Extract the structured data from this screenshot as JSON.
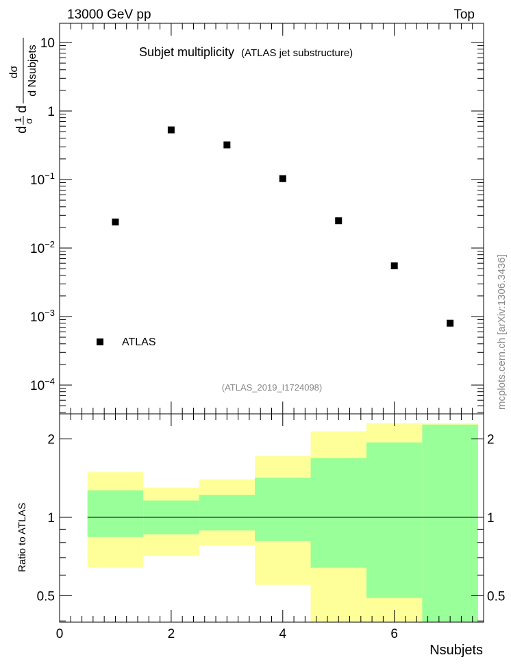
{
  "header": {
    "left": "13000 GeV pp",
    "right": "Top"
  },
  "main": {
    "title": "Subjet multiplicity",
    "subtitle": "(ATLAS jet substructure)",
    "analysis_label": "(ATLAS_2019_I1724098)",
    "ylabel_prefix": "1",
    "ylabel_sigma": "σ",
    "ylabel_d": "d",
    "ylabel_num": "dσ",
    "ylabel_den": "d Nsubjets"
  },
  "side_label": "mcplots.cern.ch [arXiv:1306.3436]",
  "ratio": {
    "ylabel": "Ratio to ATLAS",
    "xlabel": "Nsubjets"
  },
  "colors": {
    "band_outer": "#ffff99",
    "band_inner": "#99ff99",
    "marker": "#000000",
    "watermark": "#888888"
  },
  "chart_data": [
    {
      "type": "scatter",
      "title": "Subjet multiplicity",
      "ylabel": "dσ/dNsubjets (1/σ)",
      "yscale": "log",
      "xlim": [
        0,
        7.6
      ],
      "ylim": [
        4e-05,
        20
      ],
      "y_ticks": [
        {
          "value": 0.0001,
          "mantissa": "10",
          "exp": "−4"
        },
        {
          "value": 0.001,
          "mantissa": "10",
          "exp": "−3"
        },
        {
          "value": 0.01,
          "mantissa": "10",
          "exp": "−2"
        },
        {
          "value": 0.1,
          "mantissa": "10",
          "exp": "−1"
        },
        {
          "value": 1,
          "mantissa": "1",
          "exp": ""
        },
        {
          "value": 10,
          "mantissa": "10",
          "exp": ""
        }
      ],
      "legend": {
        "entries": [
          "ATLAS"
        ],
        "position": "bottom-left"
      },
      "series": [
        {
          "name": "ATLAS",
          "x": [
            1,
            2,
            3,
            4,
            5,
            6,
            7
          ],
          "y": [
            0.024,
            0.53,
            0.32,
            0.103,
            0.025,
            0.0055,
            0.0008
          ]
        }
      ]
    },
    {
      "type": "area",
      "ylabel": "Ratio to ATLAS",
      "xlabel": "Nsubjets",
      "xlim": [
        0,
        7.6
      ],
      "ylim": [
        0.35,
        2.3
      ],
      "x_ticks": [
        "0",
        "2",
        "4",
        "6"
      ],
      "y_ticks": [
        "0.5",
        "1",
        "2"
      ],
      "reference_line": 1,
      "bins": [
        {
          "low": 0.5,
          "high": 1.5,
          "outer": [
            0.64,
            1.49
          ],
          "inner": [
            0.84,
            1.27
          ]
        },
        {
          "low": 1.5,
          "high": 2.5,
          "outer": [
            0.71,
            1.3
          ],
          "inner": [
            0.86,
            1.16
          ]
        },
        {
          "low": 2.5,
          "high": 3.5,
          "outer": [
            0.78,
            1.4
          ],
          "inner": [
            0.89,
            1.22
          ]
        },
        {
          "low": 3.5,
          "high": 4.5,
          "outer": [
            0.55,
            1.72
          ],
          "inner": [
            0.81,
            1.42
          ]
        },
        {
          "low": 4.5,
          "high": 5.5,
          "outer": [
            0.35,
            2.14
          ],
          "inner": [
            0.64,
            1.69
          ]
        },
        {
          "low": 5.5,
          "high": 6.5,
          "outer": [
            0.35,
            2.3
          ],
          "inner": [
            0.49,
            1.94
          ]
        },
        {
          "low": 6.5,
          "high": 7.5,
          "outer": [
            0.35,
            2.3
          ],
          "inner": [
            0.35,
            2.27
          ]
        }
      ]
    }
  ]
}
